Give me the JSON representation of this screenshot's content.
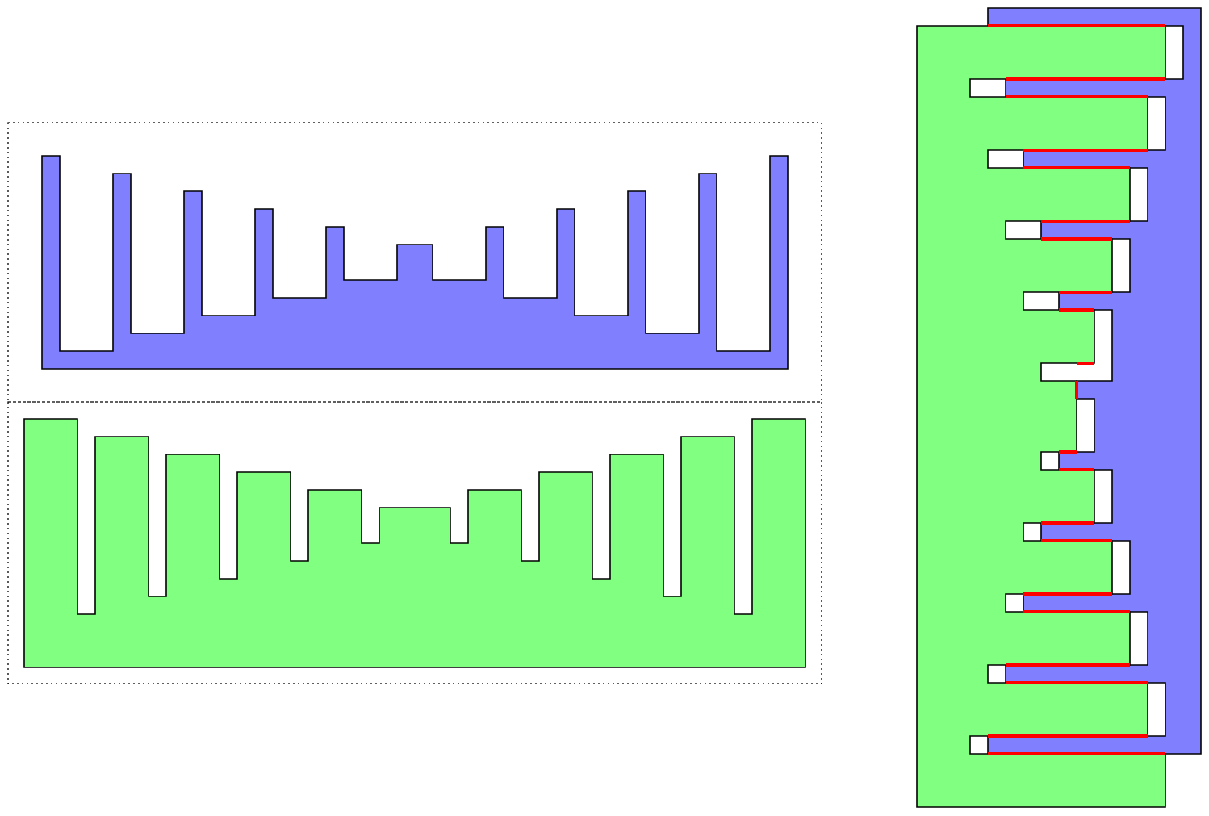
{
  "colors": {
    "piece_a_fill": "#8080ff",
    "piece_b_fill": "#80ff80",
    "outline": "#000000",
    "seam": "#ff0000",
    "background": "#ffffff",
    "frame": "#000000"
  },
  "comb": {
    "teeth_per_side": 11,
    "depth_levels": [
      1,
      2,
      3,
      4,
      5,
      6,
      5,
      4,
      3,
      2,
      1
    ]
  },
  "views": [
    {
      "name": "separated-top-piece",
      "color_key": "piece_a_fill"
    },
    {
      "name": "separated-bottom-piece",
      "color_key": "piece_b_fill"
    },
    {
      "name": "interlocked-assembly",
      "color_key": "seam"
    }
  ]
}
